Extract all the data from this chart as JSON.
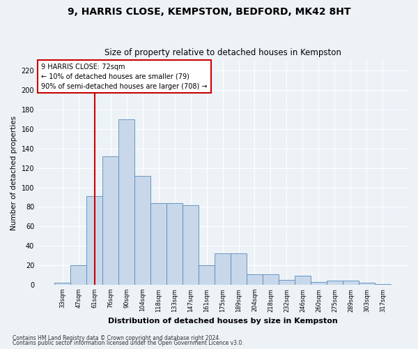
{
  "title1": "9, HARRIS CLOSE, KEMPSTON, BEDFORD, MK42 8HT",
  "title2": "Size of property relative to detached houses in Kempston",
  "xlabel": "Distribution of detached houses by size in Kempston",
  "ylabel": "Number of detached properties",
  "categories": [
    "33sqm",
    "47sqm",
    "61sqm",
    "76sqm",
    "90sqm",
    "104sqm",
    "118sqm",
    "133sqm",
    "147sqm",
    "161sqm",
    "175sqm",
    "189sqm",
    "204sqm",
    "218sqm",
    "232sqm",
    "246sqm",
    "260sqm",
    "275sqm",
    "289sqm",
    "303sqm",
    "317sqm"
  ],
  "values": [
    2,
    20,
    91,
    132,
    170,
    112,
    84,
    84,
    82,
    20,
    32,
    32,
    11,
    11,
    5,
    9,
    3,
    4,
    4,
    2,
    1
  ],
  "bar_color": "#c8d8ea",
  "bar_edge_color": "#5588bb",
  "annotation_line1": "9 HARRIS CLOSE: 72sqm",
  "annotation_line2": "← 10% of detached houses are smaller (79)",
  "annotation_line3": "90% of semi-detached houses are larger (708) →",
  "vline_color": "#cc0000",
  "box_color": "#cc0000",
  "footnote1": "Contains HM Land Registry data © Crown copyright and database right 2024.",
  "footnote2": "Contains public sector information licensed under the Open Government Licence v3.0.",
  "ylim": [
    0,
    230
  ],
  "vline_x": 2.0,
  "bg_color": "#edf2f7",
  "grid_color": "#ffffff"
}
